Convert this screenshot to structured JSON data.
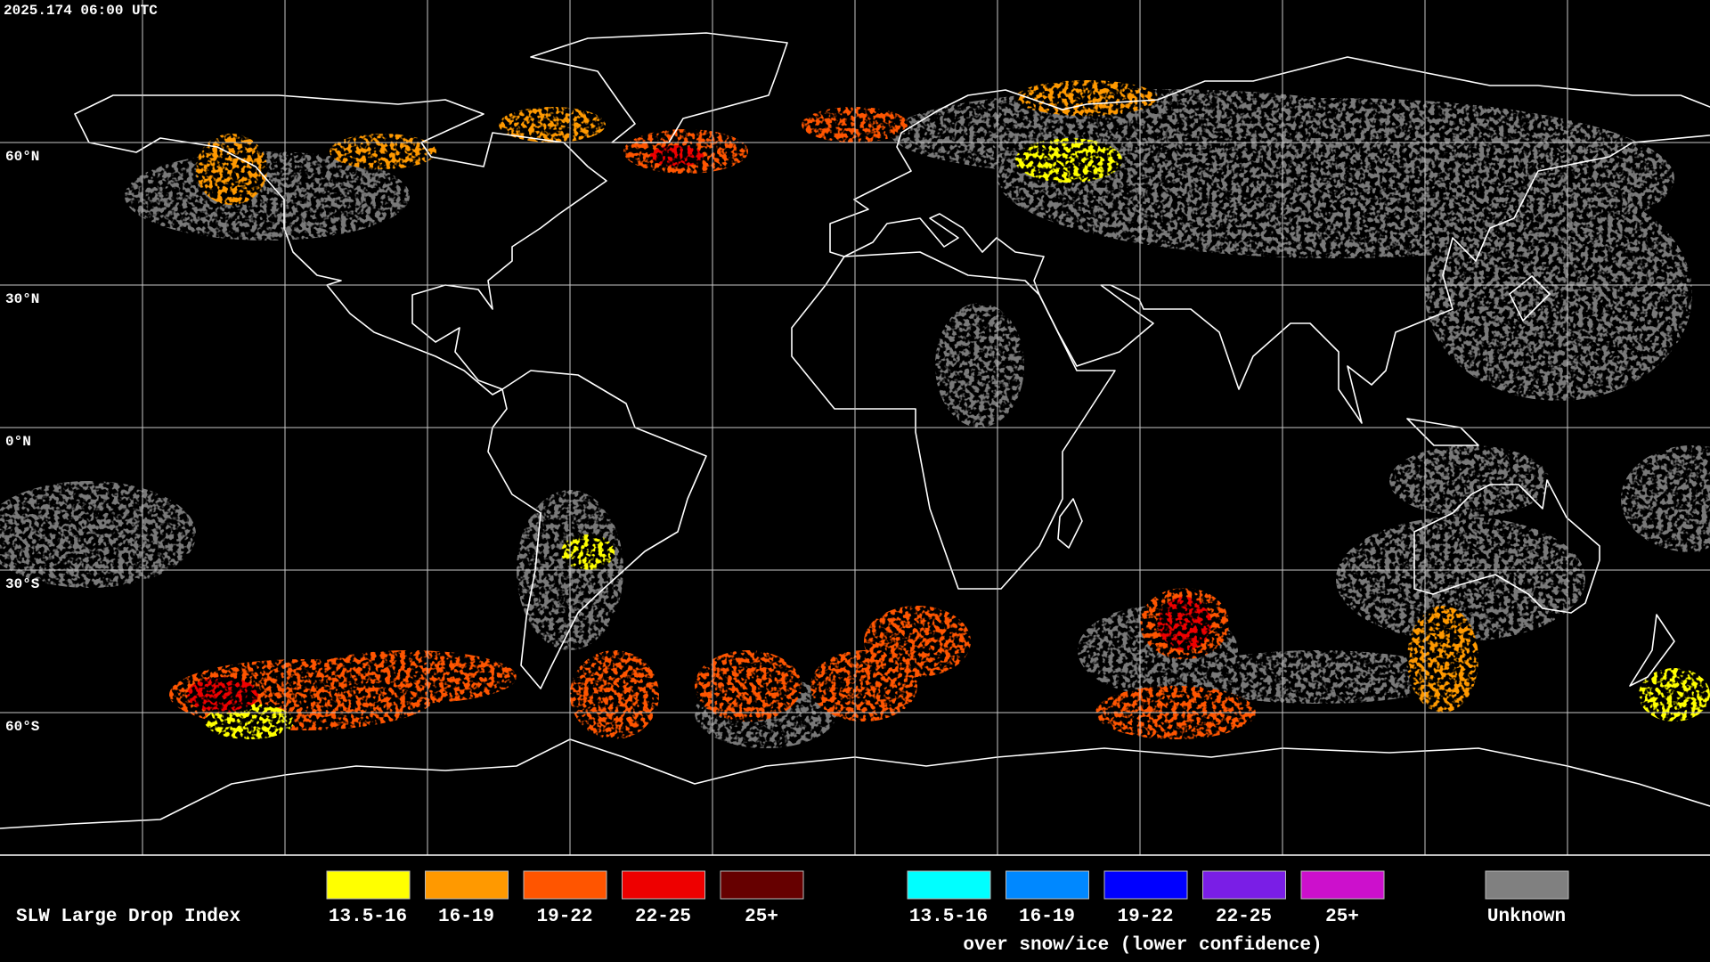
{
  "timestamp": "2025.174 06:00 UTC",
  "lat_labels": [
    "60°N",
    "30°N",
    "0°N",
    "30°S",
    "60°S"
  ],
  "legend": {
    "title": "SLW Large Drop Index",
    "items": [
      {
        "label": "13.5-16",
        "color": "#ffff00"
      },
      {
        "label": "16-19",
        "color": "#ff9900"
      },
      {
        "label": "19-22",
        "color": "#ff5500"
      },
      {
        "label": "22-25",
        "color": "#ee0000"
      },
      {
        "label": "25+",
        "color": "#660000"
      }
    ],
    "ice_items": [
      {
        "label": "13.5-16",
        "color": "#00ffff"
      },
      {
        "label": "16-19",
        "color": "#0088ff"
      },
      {
        "label": "19-22",
        "color": "#0000ff"
      },
      {
        "label": "22-25",
        "color": "#7a1ee6"
      },
      {
        "label": "25+",
        "color": "#cc10cc"
      }
    ],
    "ice_caption": "over snow/ice (lower confidence)",
    "unknown": {
      "label": "Unknown",
      "color": "#808080"
    }
  }
}
